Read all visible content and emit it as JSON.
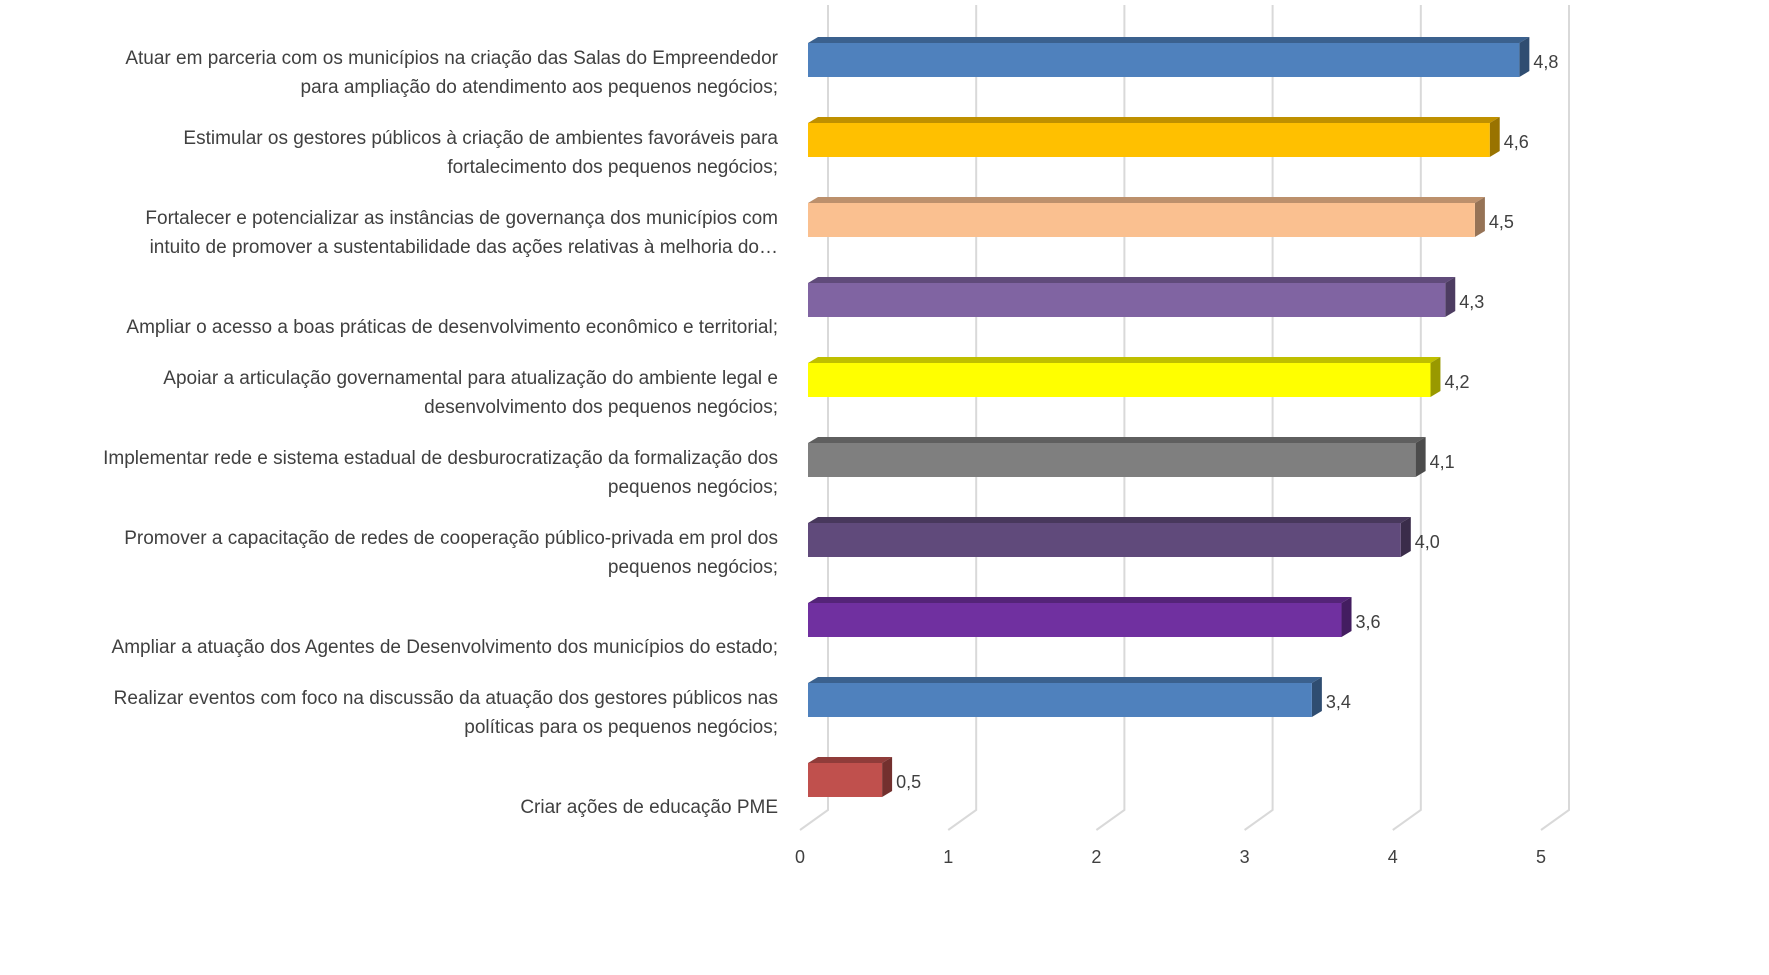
{
  "chart_data": {
    "type": "bar3d_horizontal",
    "categories": [
      "Atuar em parceria com os municípios na criação das Salas do Empreendedor\npara ampliação do atendimento aos pequenos negócios;",
      "Estimular os gestores públicos à criação de ambientes favoráveis para\nfortalecimento dos pequenos negócios;",
      "Fortalecer e potencializar as instâncias de governança dos municípios com\nintuito de promover a sustentabilidade das ações relativas à melhoria do…",
      "Ampliar o acesso a boas práticas de desenvolvimento econômico e territorial;",
      "Apoiar a articulação governamental para atualização do ambiente legal e\ndesenvolvimento dos pequenos negócios;",
      "Implementar rede e sistema estadual de desburocratização da formalização dos\npequenos negócios;",
      "Promover a capacitação de redes de cooperação público-privada em prol dos\npequenos negócios;",
      "Ampliar a atuação dos Agentes de Desenvolvimento dos municípios do estado;",
      "Realizar eventos com foco na discussão da atuação dos gestores públicos nas\npolíticas para os pequenos negócios;",
      "Criar ações de educação PME"
    ],
    "values": [
      4.8,
      4.6,
      4.5,
      4.3,
      4.2,
      4.1,
      4.0,
      3.6,
      3.4,
      0.5
    ],
    "value_labels": [
      "4,8",
      "4,6",
      "4,5",
      "4,3",
      "4,2",
      "4,1",
      "4,0",
      "3,6",
      "3,4",
      "0,5"
    ],
    "colors": [
      "#4f81bd",
      "#ffc000",
      "#fac090",
      "#8064a2",
      "#ffff00",
      "#7f7f7f",
      "#604a7b",
      "#7030a0",
      "#4f81bd",
      "#c0504d"
    ],
    "xlim": [
      0,
      5
    ],
    "xticks": [
      0,
      1,
      2,
      3,
      4,
      5
    ],
    "grid": true
  }
}
